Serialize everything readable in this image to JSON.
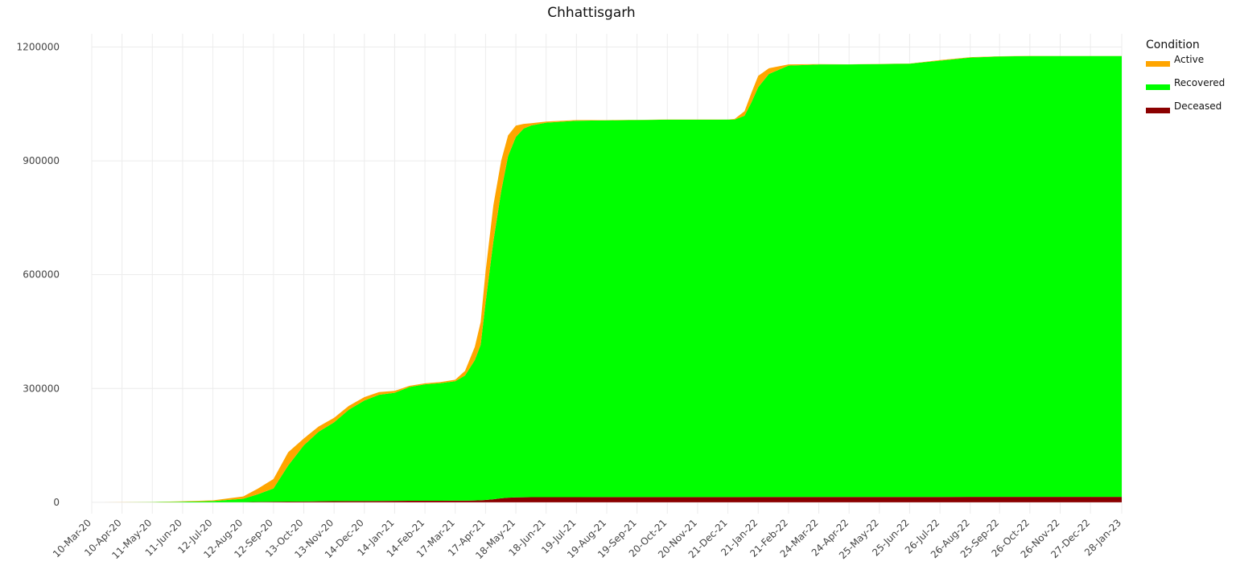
{
  "chart_data": {
    "type": "area",
    "stacked": true,
    "title": "Chhattisgarh",
    "xlabel": "",
    "ylabel": "",
    "ylim": [
      -30000,
      1235000
    ],
    "yticks": [
      0,
      300000,
      600000,
      900000,
      1200000
    ],
    "ytick_labels": [
      "0",
      "300000",
      "600000",
      "900000",
      "1200000"
    ],
    "x_tick_labels": [
      "10-Mar-20",
      "10-Apr-20",
      "11-May-20",
      "11-Jun-20",
      "12-Jul-20",
      "12-Aug-20",
      "12-Sep-20",
      "13-Oct-20",
      "13-Nov-20",
      "14-Dec-20",
      "14-Jan-21",
      "14-Feb-21",
      "17-Mar-21",
      "17-Apr-21",
      "18-May-21",
      "18-Jun-21",
      "19-Jul-21",
      "19-Aug-21",
      "19-Sep-21",
      "20-Oct-21",
      "20-Nov-21",
      "21-Dec-21",
      "21-Jan-22",
      "21-Feb-22",
      "24-Mar-22",
      "24-Apr-22",
      "25-May-22",
      "25-Jun-22",
      "26-Jul-22",
      "26-Aug-22",
      "25-Sep-22",
      "26-Oct-22",
      "26-Nov-22",
      "27-Dec-22",
      "28-Jan-23"
    ],
    "x": [
      "2020-03-10",
      "2020-04-10",
      "2020-05-11",
      "2020-06-11",
      "2020-07-12",
      "2020-08-12",
      "2020-08-27",
      "2020-09-12",
      "2020-09-27",
      "2020-10-13",
      "2020-10-28",
      "2020-11-13",
      "2020-11-28",
      "2020-12-14",
      "2020-12-29",
      "2021-01-14",
      "2021-01-29",
      "2021-02-14",
      "2021-03-02",
      "2021-03-17",
      "2021-03-27",
      "2021-04-06",
      "2021-04-12",
      "2021-04-17",
      "2021-04-25",
      "2021-05-03",
      "2021-05-10",
      "2021-05-18",
      "2021-05-26",
      "2021-06-03",
      "2021-06-18",
      "2021-07-19",
      "2021-08-19",
      "2021-09-19",
      "2021-10-20",
      "2021-11-20",
      "2021-12-21",
      "2021-12-28",
      "2022-01-07",
      "2022-01-14",
      "2022-01-21",
      "2022-02-01",
      "2022-02-21",
      "2022-03-24",
      "2022-04-24",
      "2022-05-25",
      "2022-06-25",
      "2022-07-26",
      "2022-08-26",
      "2022-09-25",
      "2022-10-26",
      "2022-11-26",
      "2022-12-27",
      "2023-01-28"
    ],
    "series": [
      {
        "name": "Deceased",
        "color": "#8b0000",
        "values": [
          0,
          0,
          0,
          0,
          50,
          300,
          1000,
          1500,
          1800,
          2100,
          2500,
          2800,
          3000,
          3200,
          3400,
          3600,
          3800,
          3900,
          4000,
          4100,
          4300,
          4600,
          5200,
          6000,
          8000,
          10500,
          12000,
          13000,
          13300,
          13400,
          13500,
          13500,
          13600,
          13600,
          13600,
          13600,
          13700,
          13700,
          13800,
          13900,
          14000,
          14100,
          14100,
          14100,
          14100,
          14100,
          14100,
          14100,
          14200,
          14200,
          14200,
          14200,
          14200,
          14200
        ]
      },
      {
        "name": "Recovered",
        "color": "#00ff00",
        "values": [
          0,
          0,
          500,
          1500,
          3000,
          9000,
          20000,
          35000,
          95000,
          148000,
          183000,
          208000,
          241000,
          265000,
          280000,
          285000,
          300000,
          307000,
          310000,
          315000,
          330000,
          370000,
          410000,
          520000,
          680000,
          810000,
          900000,
          950000,
          972000,
          980000,
          987000,
          992000,
          993000,
          994000,
          995000,
          995000,
          995000,
          995000,
          1005000,
          1040000,
          1080000,
          1115000,
          1137000,
          1140000,
          1140000,
          1141000,
          1142000,
          1150000,
          1158000,
          1161000,
          1162000,
          1162000,
          1162000,
          1162000
        ]
      },
      {
        "name": "Active",
        "color": "#ffa500",
        "values": [
          0,
          100,
          200,
          1000,
          2000,
          6000,
          15000,
          25000,
          35000,
          18000,
          14000,
          12000,
          10000,
          9000,
          7000,
          5000,
          3000,
          2500,
          3000,
          4000,
          12000,
          35000,
          60000,
          82000,
          95000,
          80000,
          55000,
          30000,
          12000,
          6000,
          3000,
          2000,
          1000,
          500,
          500,
          500,
          500,
          2000,
          12000,
          25000,
          30000,
          15000,
          3000,
          1000,
          500,
          500,
          500,
          1500,
          1000,
          500,
          400,
          300,
          200,
          200
        ]
      }
    ],
    "legend": {
      "title": "Condition",
      "entries": [
        "Active",
        "Recovered",
        "Deceased"
      ],
      "placement": "top-right"
    },
    "grid": true
  }
}
